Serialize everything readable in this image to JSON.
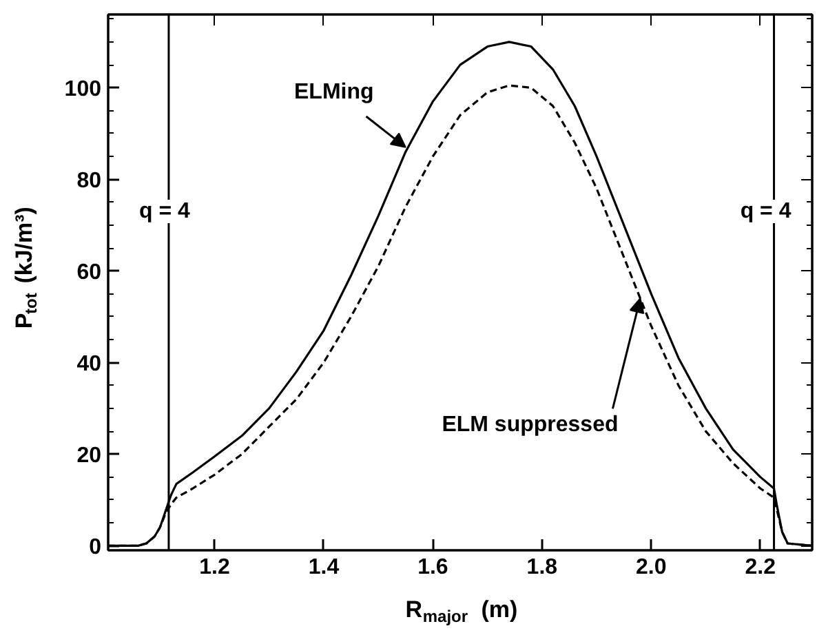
{
  "chart_data": {
    "type": "line",
    "xlabel": "R$_{major}$ (m)",
    "ylabel": "P$_{tot}$ (kJ/m³)",
    "x": [
      1.005,
      1.06,
      1.075,
      1.09,
      1.1,
      1.11,
      1.12,
      1.13,
      1.16,
      1.2,
      1.25,
      1.3,
      1.35,
      1.4,
      1.45,
      1.5,
      1.55,
      1.6,
      1.65,
      1.7,
      1.74,
      1.78,
      1.82,
      1.86,
      1.9,
      1.95,
      2.0,
      2.05,
      2.1,
      2.15,
      2.2,
      2.225,
      2.23,
      2.24,
      2.25,
      2.295
    ],
    "series": [
      {
        "color": "#000000",
        "line_style": "solid",
        "values": [
          0,
          0,
          0.5,
          2,
          4,
          7.5,
          11,
          13.5,
          16,
          19.5,
          24,
          30,
          38,
          47,
          59,
          72,
          86,
          97,
          105,
          109,
          110,
          109,
          104,
          96,
          85,
          70,
          55,
          41,
          30,
          21,
          15,
          12.5,
          9,
          3,
          0.5,
          0
        ]
      },
      {
        "color": "#000000",
        "line_style": "dashed",
        "values": [
          0,
          0,
          0.5,
          2,
          4,
          7,
          9,
          10.5,
          12.5,
          15.5,
          20,
          26,
          32,
          40,
          50,
          61,
          74,
          85,
          94,
          99,
          100.5,
          100,
          96,
          88,
          78,
          63,
          48,
          35,
          25,
          18,
          12.5,
          10.5,
          8,
          3,
          0.5,
          0
        ]
      }
    ],
    "xlim": [
      1.005,
      2.295
    ],
    "ylim": [
      -1,
      116
    ],
    "xticks": [
      1.2,
      1.4,
      1.6,
      1.8,
      {
        "value": 2.0,
        "label": "2.0"
      },
      2.2
    ],
    "yticks": [
      0,
      20,
      40,
      60,
      80,
      100
    ],
    "ref_lines": [
      {
        "axis": "x",
        "value": 1.116,
        "color": "#000000"
      },
      {
        "axis": "x",
        "value": 2.225,
        "color": "#000000"
      }
    ],
    "annotations": [
      {
        "text": "ELMing",
        "x": 1.55,
        "y": 87
      },
      {
        "text": "ELM suppressed",
        "x": 1.98,
        "y": 54
      },
      {
        "text": "q = 4",
        "x": 1.116,
        "y": 73
      },
      {
        "text": "q = 4",
        "x": 2.225,
        "y": 73
      }
    ],
    "grid": false,
    "marker": "none"
  }
}
